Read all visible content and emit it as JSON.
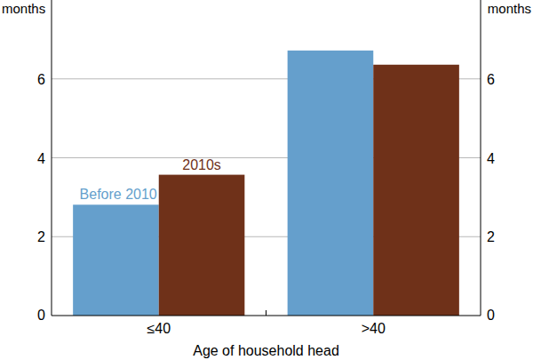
{
  "chart_data": {
    "type": "bar",
    "x_label": "Age of household head",
    "y_label": "months",
    "categories": [
      "≤40",
      ">40"
    ],
    "series": [
      {
        "name": "Before 2010",
        "color": "#659fcc",
        "values": [
          2.81,
          6.72
        ]
      },
      {
        "name": "2010s",
        "color": "#6f3119",
        "values": [
          3.57,
          6.36
        ]
      }
    ],
    "ylim": [
      0,
      8
    ],
    "yticks": [
      0,
      2,
      4,
      6
    ],
    "grid": true
  }
}
